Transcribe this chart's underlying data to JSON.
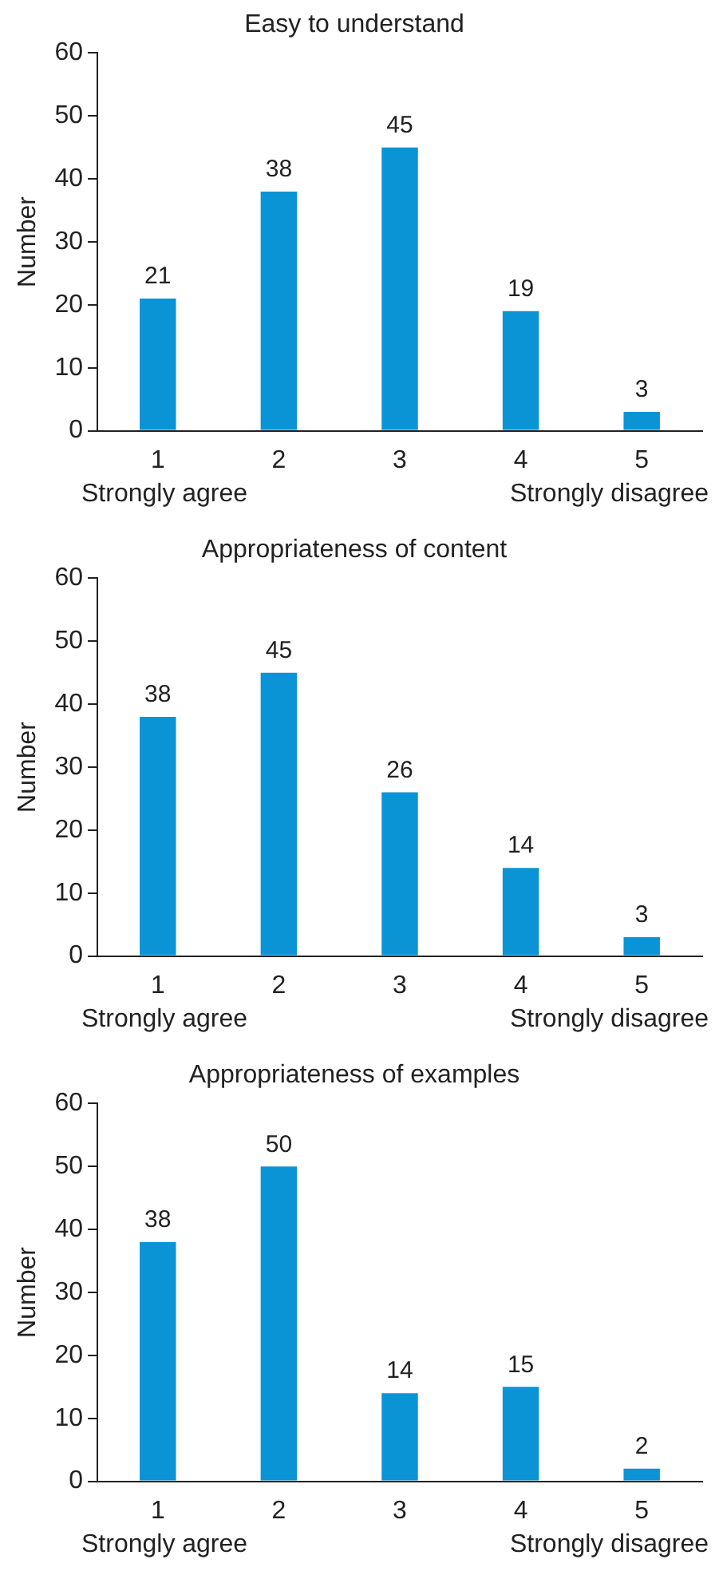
{
  "chart_data": [
    {
      "type": "bar",
      "title": "Easy to understand",
      "ylabel": "Number",
      "categories": [
        "1",
        "2",
        "3",
        "4",
        "5"
      ],
      "values": [
        21,
        38,
        45,
        19,
        3
      ],
      "color": "#0a94d6",
      "ylim": [
        0,
        60
      ],
      "yticks": [
        0,
        10,
        20,
        30,
        40,
        50,
        60
      ],
      "grid": false,
      "legend": false,
      "data_labels": true,
      "annotations": [
        "Strongly agree",
        "Strongly disagree"
      ]
    },
    {
      "type": "bar",
      "title": "Appropriateness of content",
      "ylabel": "Number",
      "categories": [
        "1",
        "2",
        "3",
        "4",
        "5"
      ],
      "values": [
        38,
        45,
        26,
        14,
        3
      ],
      "color": "#0a94d6",
      "ylim": [
        0,
        60
      ],
      "yticks": [
        0,
        10,
        20,
        30,
        40,
        50,
        60
      ],
      "grid": false,
      "legend": false,
      "data_labels": true,
      "annotations": [
        "Strongly agree",
        "Strongly disagree"
      ]
    },
    {
      "type": "bar",
      "title": "Appropriateness of examples",
      "ylabel": "Number",
      "categories": [
        "1",
        "2",
        "3",
        "4",
        "5"
      ],
      "values": [
        38,
        50,
        14,
        15,
        2
      ],
      "color": "#0a94d6",
      "ylim": [
        0,
        60
      ],
      "yticks": [
        0,
        10,
        20,
        30,
        40,
        50,
        60
      ],
      "grid": false,
      "legend": false,
      "data_labels": true,
      "annotations": [
        "Strongly agree",
        "Strongly disagree"
      ]
    }
  ]
}
